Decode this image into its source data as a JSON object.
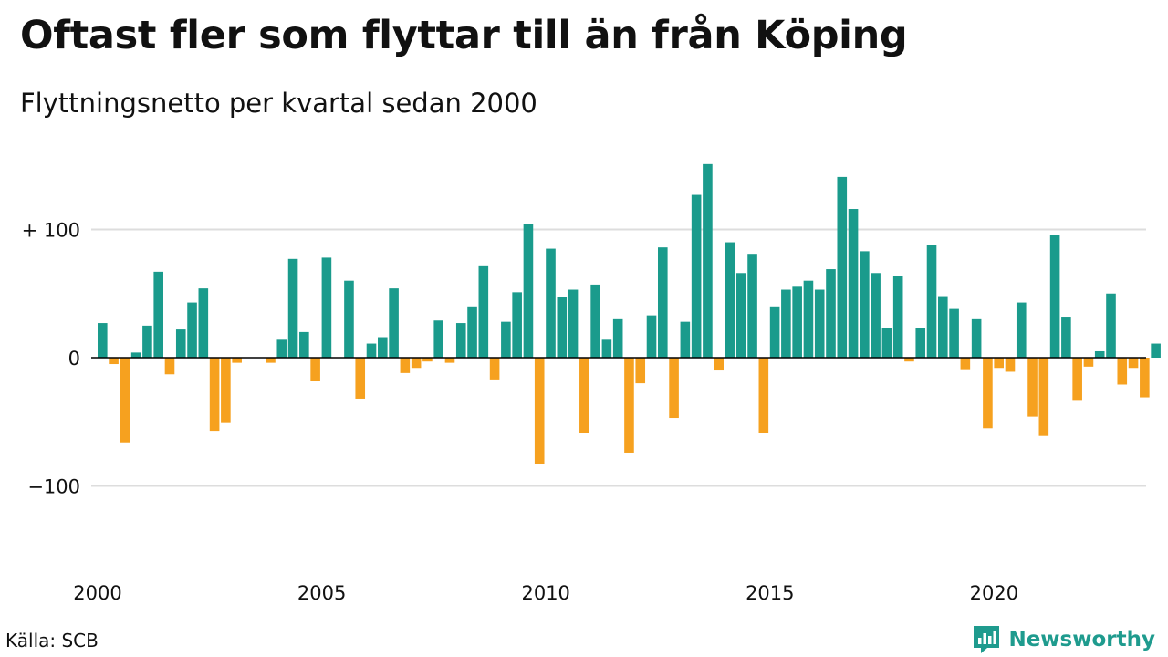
{
  "title": "Oftast fler som flyttar till än från Köping",
  "subtitle": "Flyttningsnetto per kvartal sedan 2000",
  "source": "Källa: SCB",
  "brand": {
    "name": "Newsworthy",
    "icon": "newsworthy-logo-icon",
    "color": "#1f9b8e"
  },
  "colors": {
    "positive": "#1a9b8c",
    "negative": "#f6a11f",
    "grid": "#dddddd",
    "axis": "#000000"
  },
  "chart_data": {
    "type": "bar",
    "title": "Oftast fler som flyttar till än från Köping",
    "subtitle": "Flyttningsnetto per kvartal sedan 2000",
    "xlabel": "",
    "ylabel": "",
    "ylim": [
      -160,
      160
    ],
    "yticks": [
      100,
      0,
      -100
    ],
    "ytick_labels": [
      "+ 100",
      "0",
      "−100"
    ],
    "xticks": [
      2000,
      2005,
      2010,
      2015,
      2020
    ],
    "xtick_labels": [
      "2000",
      "2005",
      "2010",
      "2015",
      "2020"
    ],
    "grid": true,
    "legend": "none",
    "start_year": 2000,
    "quarters_per_year": 4,
    "values": [
      27,
      -5,
      -66,
      4,
      25,
      67,
      -13,
      22,
      43,
      54,
      -57,
      -51,
      -4,
      0,
      0,
      -4,
      14,
      77,
      20,
      -18,
      78,
      0,
      60,
      -32,
      11,
      16,
      54,
      -12,
      -8,
      -3,
      29,
      -4,
      27,
      40,
      72,
      -17,
      28,
      51,
      104,
      -83,
      85,
      47,
      53,
      -59,
      57,
      14,
      30,
      -74,
      -20,
      33,
      86,
      -47,
      28,
      127,
      151,
      -10,
      90,
      66,
      81,
      -59,
      40,
      53,
      56,
      60,
      53,
      69,
      141,
      116,
      83,
      66,
      23,
      64,
      -3,
      23,
      88,
      48,
      38,
      -9,
      30,
      -55,
      -8,
      -11,
      43,
      -46,
      -61,
      96,
      32,
      -33,
      -7,
      5,
      50,
      -21,
      -8,
      -31,
      11
    ]
  }
}
